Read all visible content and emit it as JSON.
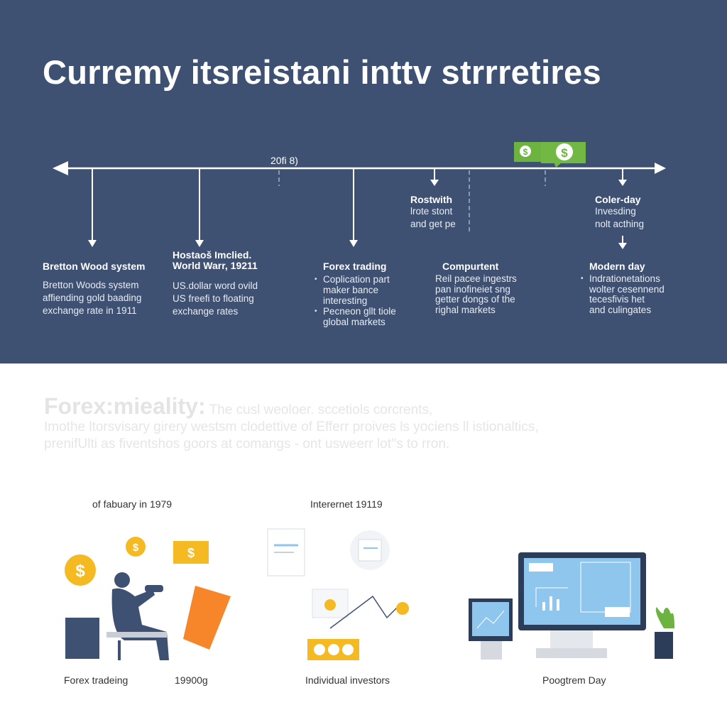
{
  "title": "Curremy itsreistani inttv strrretires",
  "timeline": {
    "marker_label": "20fi 8)",
    "events": [
      {
        "title": "Bretton Wood system",
        "body": [
          "Bretton Woods system",
          "affiending gold baading",
          "exchange rate in 1911"
        ]
      },
      {
        "title": "Hostaoš Imclied. World Warr, 19211",
        "title_lines": [
          "Hostaoš Imclied.",
          "World Warr, 19211"
        ],
        "body": [
          "US.dollar word ovild",
          "US freefi to floating",
          "exchange rates"
        ]
      },
      {
        "title": "Forex trading",
        "bullets": [
          [
            "Coplication part",
            "maker bance",
            "interesting"
          ],
          [
            "Pecneon gllt tiole",
            "global markets"
          ]
        ]
      },
      {
        "title": "Rostwith",
        "body": [
          "lrote stont",
          "and get pe"
        ]
      },
      {
        "title": "Compurtent",
        "body": [
          "Reil pacee ingestrs",
          "pan inofineiet sng",
          "getter dongs of the",
          "righal markets"
        ]
      },
      {
        "title": "Coler-day",
        "body": [
          "Invesding",
          "nolt acthing"
        ]
      },
      {
        "title": "Modern day",
        "bullets": [
          [
            "Indrationetations",
            "wolter cesennend",
            "tecesfivis het",
            "and culingates"
          ]
        ]
      }
    ]
  },
  "summary": {
    "heading": "Forex:mieality:",
    "lines": [
      "The cusl weoloer. sccetiols corcrents,",
      "Imothe ltorsvisary girery westsm clodettive of Efferr proives ls yociens ll istionaltics,",
      "prenifUlti as fiventshos goors at comangs - ont usweerr lot''s to rron."
    ]
  },
  "illustrations": {
    "left": {
      "caption_top": "of fabuary in 1979",
      "caption_bottom": "Forex tradeing",
      "year": "19900g"
    },
    "middle": {
      "caption_top": "Interernet 19119",
      "caption_bottom": "Individual investors"
    },
    "right": {
      "caption_bottom": "Poogtrem Day"
    }
  },
  "colors": {
    "header_bg": "#3e5172",
    "money_green": "#6db33f",
    "coin_gold": "#f5b921",
    "orange": "#f7852a",
    "screen_blue": "#8fc6ee"
  }
}
